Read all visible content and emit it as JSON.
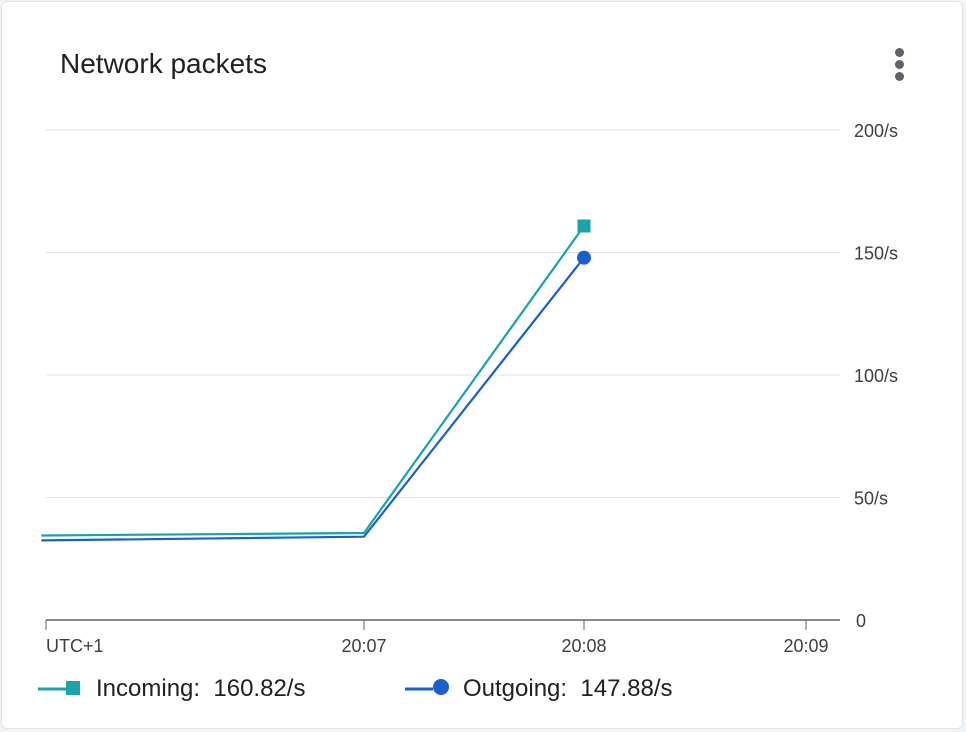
{
  "card": {
    "title": "Network packets",
    "menu_icon": "more-vert-icon"
  },
  "colors": {
    "incoming": "#1aa3a8",
    "outgoing": "#1a5fd1",
    "grid": "#e0e0e0",
    "axis": "#5f6368",
    "text": "#3c4043"
  },
  "legend": [
    {
      "series": "Incoming",
      "marker": "square",
      "text": "Incoming:  160.82/s"
    },
    {
      "series": "Outgoing",
      "marker": "circle",
      "text": "Outgoing:  147.88/s"
    }
  ],
  "chart_data": {
    "type": "line",
    "title": "Network packets",
    "timezone_label": "UTC+1",
    "x_ticks": [
      "20:07",
      "20:08",
      "20:09"
    ],
    "y_ticks": [
      "0",
      "50/s",
      "100/s",
      "150/s",
      "200/s"
    ],
    "ylim": [
      0,
      200
    ],
    "y_axis_side": "right",
    "grid": true,
    "legend_position": "bottom",
    "series": [
      {
        "name": "Incoming",
        "marker": "square",
        "points": [
          {
            "x": "20:05:32",
            "y": 34.5
          },
          {
            "x": "20:07:00",
            "y": 35.5
          },
          {
            "x": "20:08:00",
            "y": 160.82
          }
        ]
      },
      {
        "name": "Outgoing",
        "marker": "circle",
        "points": [
          {
            "x": "20:05:32",
            "y": 32.5
          },
          {
            "x": "20:07:00",
            "y": 34.0
          },
          {
            "x": "20:08:00",
            "y": 147.88
          }
        ]
      }
    ]
  }
}
